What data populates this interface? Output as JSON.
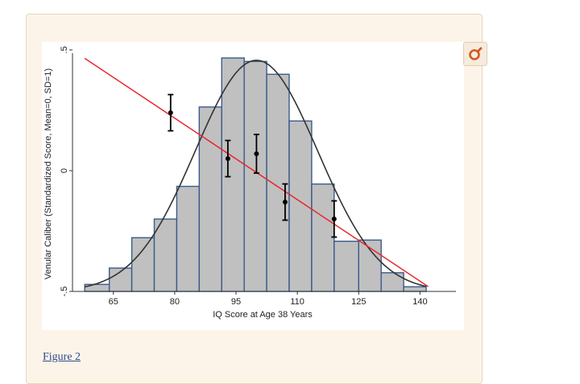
{
  "figure_link": "Figure 2",
  "zoom_icon": "zoom-magnifier-icon",
  "colors": {
    "card_bg": "#fdf4e9",
    "bar_fill": "#c0c0c0",
    "bar_stroke": "#3a5a8a",
    "curve": "#333333",
    "regression": "#e8262d",
    "points": "#000000",
    "zoom_icon": "#d25a24"
  },
  "chart_data": {
    "type": "bar",
    "xlabel": "IQ Score at Age 38 Years",
    "ylabel": "Venular Caliber (Standardized Score, Mean=0, SD=1)",
    "xlim": [
      55,
      148
    ],
    "ylim": [
      -0.5,
      0.5
    ],
    "x_ticks": [
      65,
      80,
      95,
      110,
      125,
      140
    ],
    "x_tick_labels": [
      "65",
      "80",
      "95",
      "110",
      "125",
      "140"
    ],
    "y_ticks": [
      0.5,
      0,
      -0.5
    ],
    "y_tick_labels": [
      ".5",
      "0",
      "-.5"
    ],
    "grid": false,
    "histogram_bins": [
      {
        "x0": 58,
        "x1": 64,
        "height": 0.03
      },
      {
        "x0": 64,
        "x1": 69.5,
        "height": 0.1
      },
      {
        "x0": 69.5,
        "x1": 75,
        "height": 0.23
      },
      {
        "x0": 75,
        "x1": 80.5,
        "height": 0.31
      },
      {
        "x0": 80.5,
        "x1": 86,
        "height": 0.45
      },
      {
        "x0": 86,
        "x1": 91.5,
        "height": 0.79
      },
      {
        "x0": 91.5,
        "x1": 97,
        "height": 1.0
      },
      {
        "x0": 97,
        "x1": 102.5,
        "height": 0.985
      },
      {
        "x0": 102.5,
        "x1": 108,
        "height": 0.93
      },
      {
        "x0": 108,
        "x1": 113.5,
        "height": 0.73
      },
      {
        "x0": 113.5,
        "x1": 119,
        "height": 0.46
      },
      {
        "x0": 119,
        "x1": 125,
        "height": 0.215
      },
      {
        "x0": 125,
        "x1": 130.5,
        "height": 0.22
      },
      {
        "x0": 130.5,
        "x1": 136,
        "height": 0.08
      },
      {
        "x0": 136,
        "x1": 141.5,
        "height": 0.02
      }
    ],
    "normal_curve": {
      "mean": 100,
      "sd": 15,
      "peak_height": 0.99
    },
    "regression_line": {
      "x": [
        58,
        142
      ],
      "y": [
        0.465,
        -0.48
      ]
    },
    "points": [
      {
        "x": 79,
        "y": 0.24,
        "lo": 0.165,
        "hi": 0.315
      },
      {
        "x": 93,
        "y": 0.05,
        "lo": -0.025,
        "hi": 0.125
      },
      {
        "x": 100,
        "y": 0.07,
        "lo": -0.01,
        "hi": 0.15
      },
      {
        "x": 107,
        "y": -0.13,
        "lo": -0.205,
        "hi": -0.055
      },
      {
        "x": 119,
        "y": -0.2,
        "lo": -0.275,
        "hi": -0.125
      }
    ]
  }
}
